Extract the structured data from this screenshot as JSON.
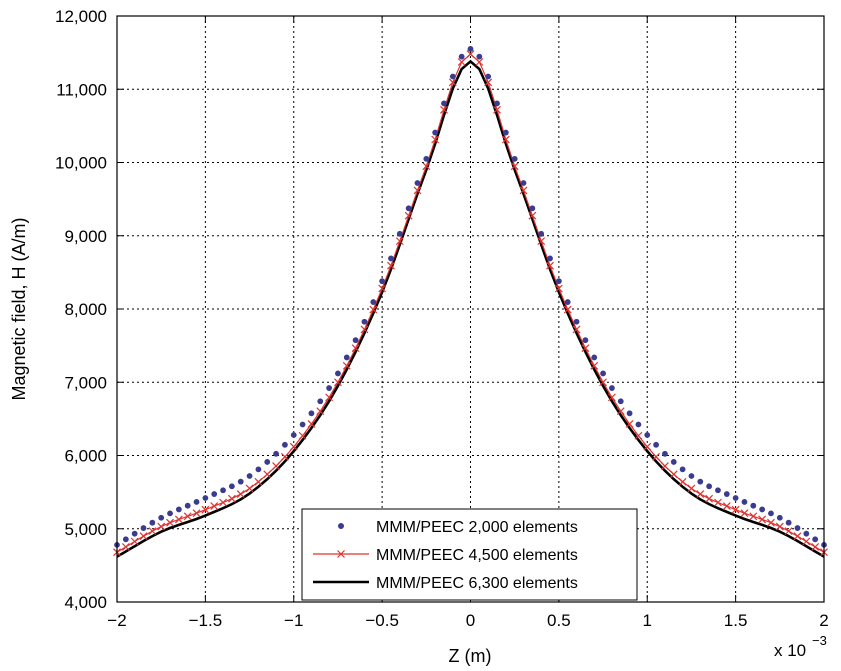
{
  "chart_data": {
    "type": "line",
    "xlabel": "Z (m)",
    "ylabel": "Magnetic field, H (A/m)",
    "x_scale_label": "x 10",
    "x_scale_exponent": "−3",
    "xlim": [
      -2,
      2
    ],
    "ylim": [
      4000,
      12000
    ],
    "grid": true,
    "legend_position": "bottom-center",
    "x_ticks": [
      -2,
      -1.5,
      -1,
      -0.5,
      0,
      0.5,
      1,
      1.5,
      2
    ],
    "x_tick_labels": [
      "−2",
      "−1.5",
      "−1",
      "−0.5",
      "0",
      "0.5",
      "1",
      "1.5",
      "2"
    ],
    "y_ticks": [
      4000,
      5000,
      6000,
      7000,
      8000,
      9000,
      10000,
      11000,
      12000
    ],
    "y_tick_labels": [
      "4,000",
      "5,000",
      "6,000",
      "7,000",
      "8,000",
      "9,000",
      "10,000",
      "11,000",
      "12,000"
    ],
    "series": [
      {
        "name": "MMM/PEEC 2,000 elements",
        "style": "dots",
        "color": "#3a3c8f",
        "x": [
          -2,
          -1.75,
          -1.5,
          -1.25,
          -1,
          -0.75,
          -0.5,
          -0.25,
          0,
          0.25,
          0.5,
          0.75,
          1,
          1.25,
          1.5,
          1.75,
          2
        ],
        "y": [
          4780,
          5150,
          5420,
          5720,
          6280,
          7120,
          8380,
          10050,
          11550,
          10050,
          8380,
          7120,
          6280,
          5720,
          5420,
          5150,
          4780
        ]
      },
      {
        "name": "MMM/PEEC 4,500 elements",
        "style": "line-x",
        "color": "#e0322f",
        "x": [
          -2,
          -1.75,
          -1.5,
          -1.25,
          -1,
          -0.75,
          -0.5,
          -0.25,
          0,
          0.25,
          0.5,
          0.75,
          1,
          1.25,
          1.5,
          1.75,
          2
        ],
        "y": [
          4680,
          5030,
          5260,
          5550,
          6120,
          7000,
          8280,
          9950,
          11480,
          9950,
          8280,
          7000,
          6120,
          5550,
          5260,
          5030,
          4680
        ]
      },
      {
        "name": "MMM/PEEC 6,300 elements",
        "style": "line",
        "color": "#000000",
        "x": [
          -2,
          -1.75,
          -1.5,
          -1.25,
          -1,
          -0.75,
          -0.5,
          -0.25,
          0,
          0.25,
          0.5,
          0.75,
          1,
          1.25,
          1.5,
          1.75,
          2
        ],
        "y": [
          4620,
          4960,
          5180,
          5480,
          6060,
          6950,
          8230,
          9900,
          11380,
          9900,
          8230,
          6950,
          6060,
          5480,
          5180,
          4960,
          4620
        ]
      }
    ]
  }
}
